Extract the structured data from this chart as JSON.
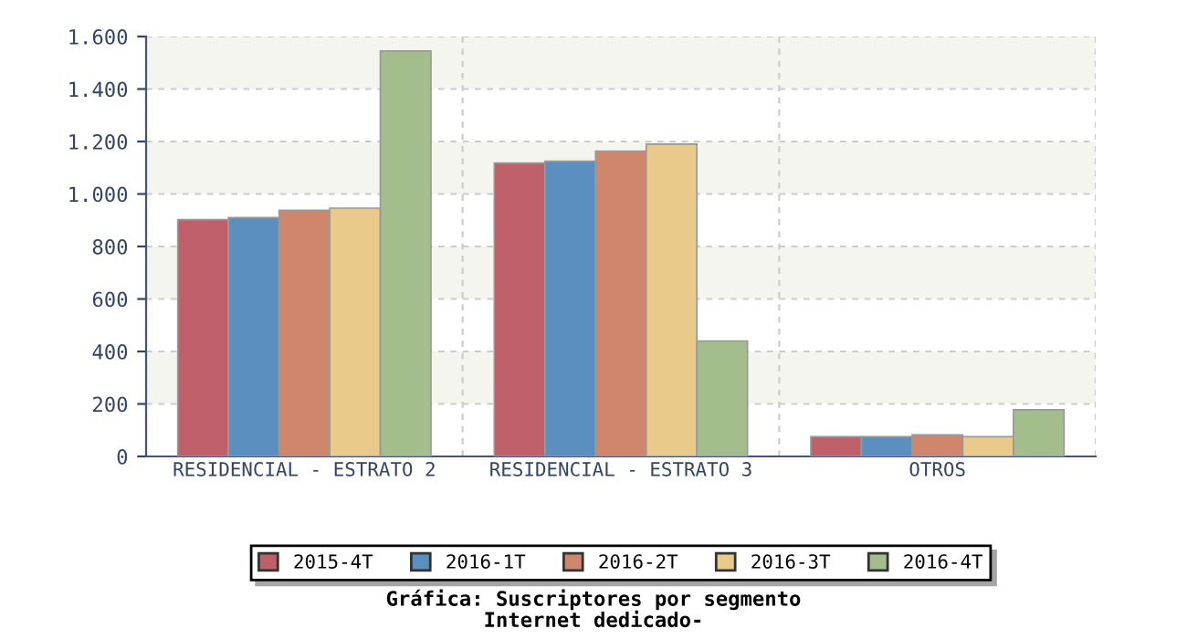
{
  "chart_data": {
    "type": "bar",
    "title": "Gráfica: Suscriptores por segmento\nInternet dedicado-",
    "categories": [
      "RESIDENCIAL - ESTRATO 2",
      "RESIDENCIAL - ESTRATO 3",
      "OTROS"
    ],
    "series": [
      {
        "name": "2015-4T",
        "color": "#bf5f69",
        "values": [
          902,
          1118,
          75
        ]
      },
      {
        "name": "2016-1T",
        "color": "#5b8fbf",
        "values": [
          910,
          1125,
          75
        ]
      },
      {
        "name": "2016-2T",
        "color": "#cf866d",
        "values": [
          938,
          1163,
          82
        ]
      },
      {
        "name": "2016-3T",
        "color": "#e9ca8b",
        "values": [
          946,
          1190,
          75
        ]
      },
      {
        "name": "2016-4T",
        "color": "#a3bd8d",
        "values": [
          1545,
          440,
          178
        ]
      }
    ],
    "ylim": [
      0,
      1600
    ],
    "yticks": [
      {
        "value": 0,
        "label": "0"
      },
      {
        "value": 200,
        "label": "200"
      },
      {
        "value": 400,
        "label": "400"
      },
      {
        "value": 600,
        "label": "600"
      },
      {
        "value": 800,
        "label": "800"
      },
      {
        "value": 1000,
        "label": "1.000"
      },
      {
        "value": 1200,
        "label": "1.200"
      },
      {
        "value": 1400,
        "label": "1.400"
      },
      {
        "value": 1600,
        "label": "1.600"
      }
    ],
    "grid": true,
    "legend": "bottom"
  }
}
